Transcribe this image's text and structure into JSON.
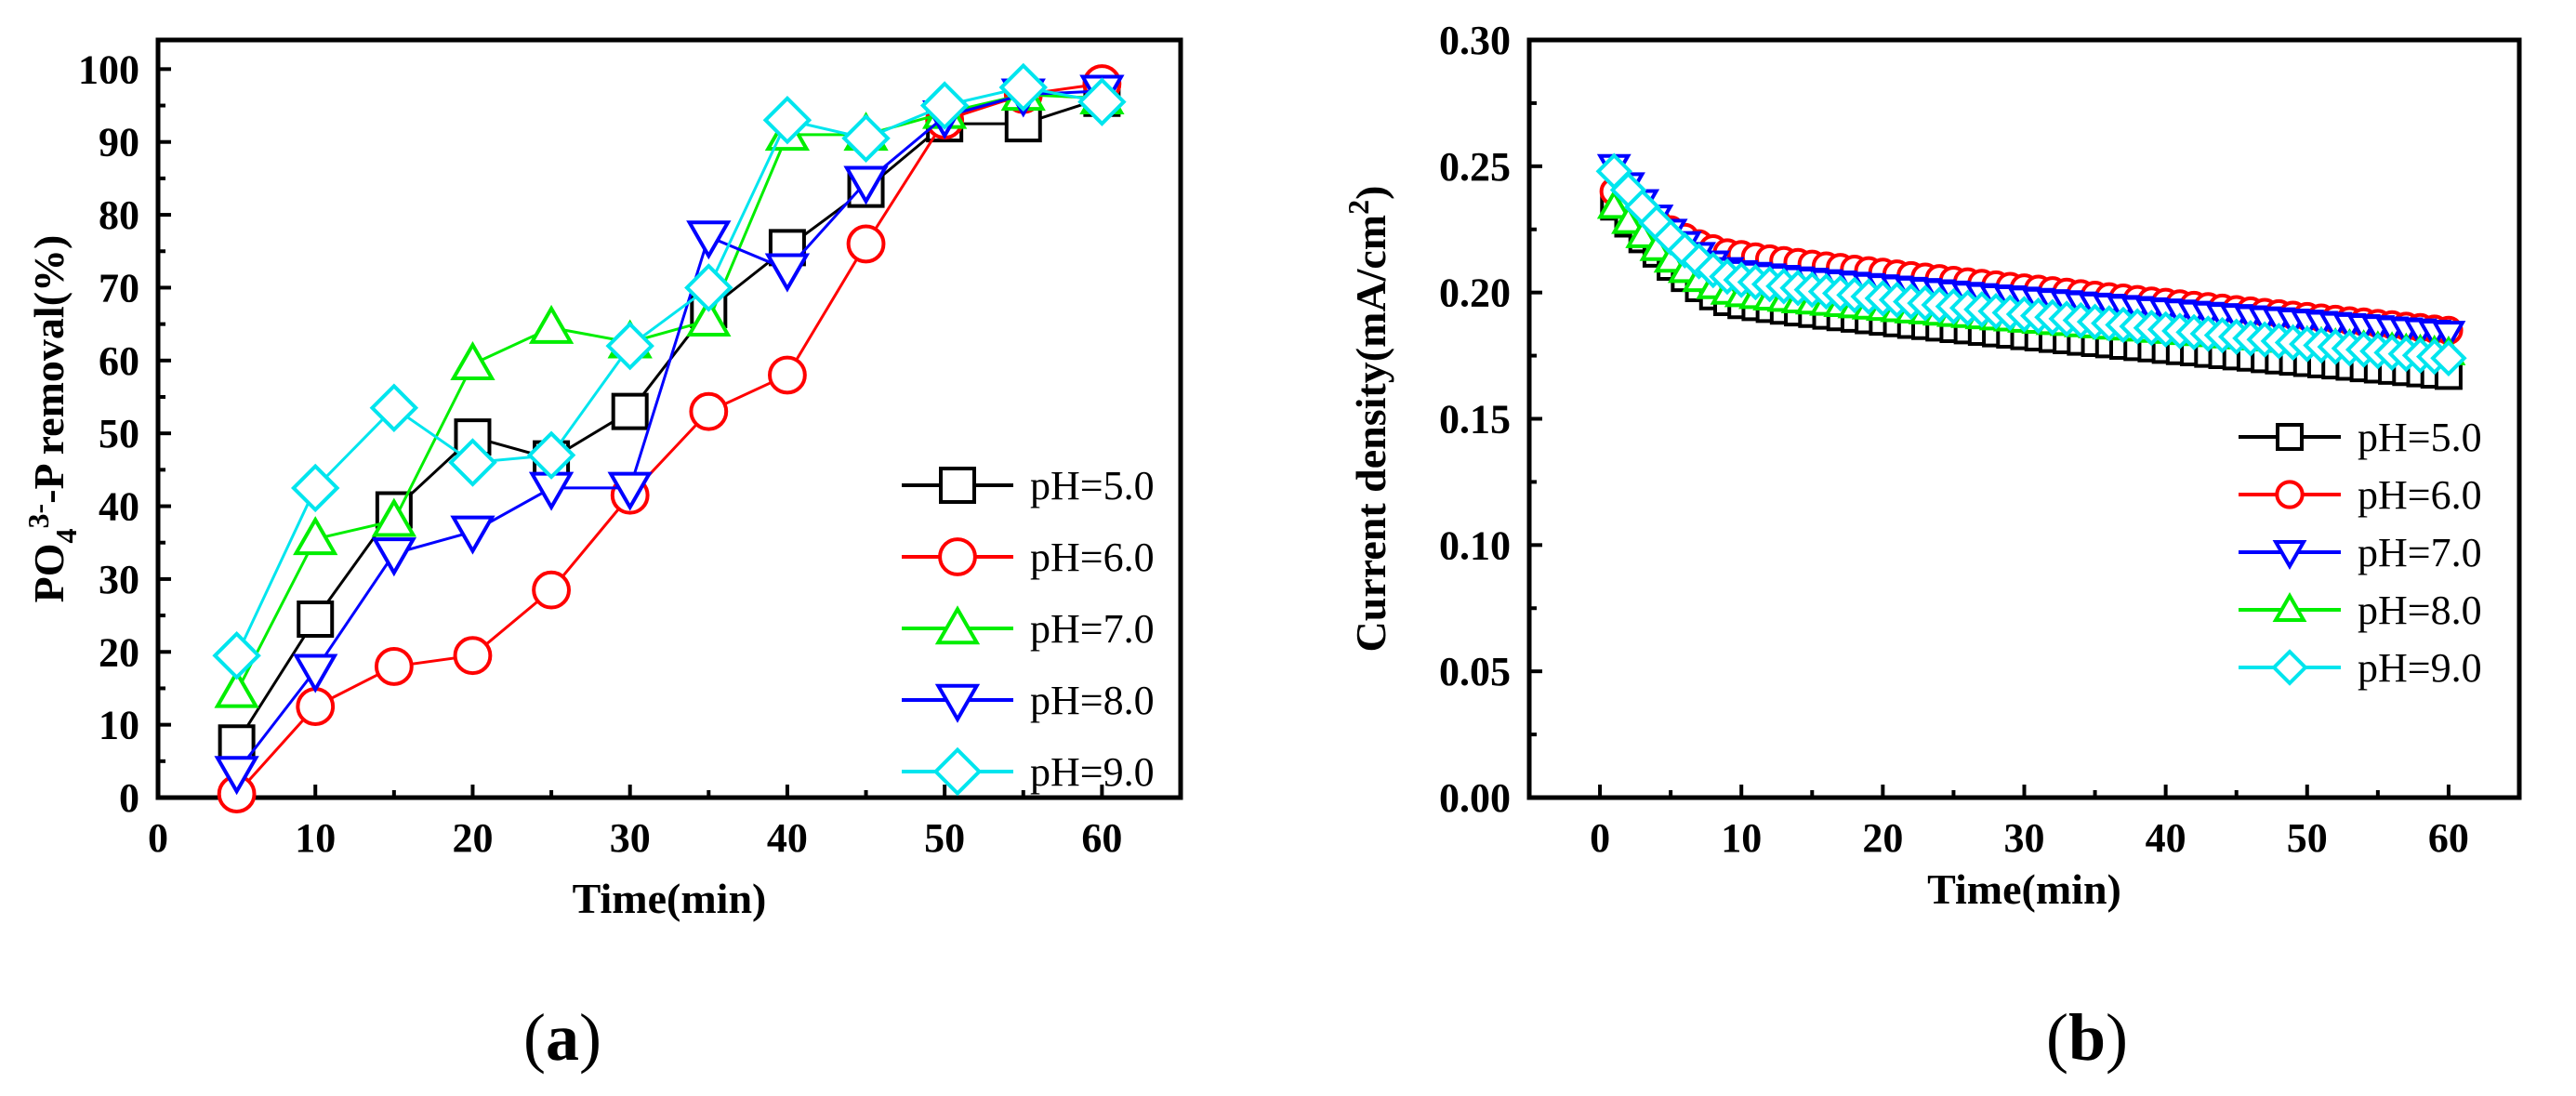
{
  "chart_data": [
    {
      "type": "line",
      "panel_label": "a",
      "xlabel": "Time(min)",
      "ylabel_parts": {
        "pre": "PO",
        "sub": "4",
        "sup": "3-",
        "post": "-P removal(%)"
      },
      "xlim": [
        0,
        65
      ],
      "ylim": [
        0,
        104
      ],
      "xticks": [
        0,
        10,
        20,
        30,
        40,
        50,
        60
      ],
      "yticks": [
        0,
        10,
        20,
        30,
        40,
        50,
        60,
        70,
        80,
        90,
        100
      ],
      "legend_position": "bottom-right",
      "series": [
        {
          "name": "pH=5.0",
          "color": "#000000",
          "marker": "square",
          "x": [
            5,
            10,
            15,
            20,
            25,
            30,
            35,
            40,
            45,
            50,
            55,
            60
          ],
          "y": [
            7.5,
            24.5,
            39.5,
            49.5,
            46.5,
            53,
            67,
            75.5,
            83.5,
            92.5,
            92.5,
            96
          ]
        },
        {
          "name": "pH=6.0",
          "color": "#ff0000",
          "marker": "circle",
          "x": [
            5,
            10,
            15,
            20,
            25,
            30,
            35,
            40,
            45,
            50,
            55,
            60
          ],
          "y": [
            0.5,
            12.5,
            18,
            19.5,
            28.5,
            41.5,
            53,
            58,
            76,
            93,
            96.5,
            98
          ]
        },
        {
          "name": "pH=7.0",
          "color": "#00ee00",
          "marker": "triangle-up",
          "x": [
            5,
            10,
            15,
            20,
            25,
            30,
            35,
            40,
            45,
            50,
            55,
            60
          ],
          "y": [
            14.5,
            35.5,
            38,
            59.5,
            64.5,
            62.5,
            65.5,
            91,
            91,
            94,
            96.5,
            96
          ]
        },
        {
          "name": "pH=8.0",
          "color": "#0000ff",
          "marker": "triangle-down",
          "x": [
            5,
            10,
            15,
            20,
            25,
            30,
            35,
            40,
            45,
            50,
            55,
            60
          ],
          "y": [
            3.5,
            17.5,
            33.5,
            36.5,
            42.5,
            42.5,
            77,
            72.5,
            84.5,
            93.5,
            96.5,
            97
          ]
        },
        {
          "name": "pH=9.0",
          "color": "#00e5ee",
          "marker": "diamond",
          "x": [
            5,
            10,
            15,
            20,
            25,
            30,
            35,
            40,
            45,
            50,
            55,
            60
          ],
          "y": [
            19.5,
            42.5,
            53.5,
            46,
            47,
            62,
            70,
            93,
            90.5,
            95,
            97.5,
            95.5
          ]
        }
      ]
    },
    {
      "type": "line",
      "panel_label": "b",
      "xlabel": "Time(min)",
      "ylabel_parts": {
        "pre": "Current density(mA/cm",
        "sup": "2",
        "post": ")"
      },
      "xlim": [
        -5,
        65
      ],
      "ylim": [
        0,
        0.3
      ],
      "xticks": [
        0,
        10,
        20,
        30,
        40,
        50,
        60
      ],
      "yticks": [
        0.0,
        0.05,
        0.1,
        0.15,
        0.2,
        0.25,
        0.3
      ],
      "ytick_labels": [
        "0.00",
        "0.05",
        "0.10",
        "0.15",
        "0.20",
        "0.25",
        "0.30"
      ],
      "legend_position": "bottom-right",
      "series": [
        {
          "name": "pH=5.0",
          "color": "#000000",
          "marker": "square",
          "x_start": 1,
          "x_end": 60,
          "x_step": 1,
          "y_start": 0.234,
          "y_end": 0.167,
          "y_knee": 0.195,
          "knee_x": 10
        },
        {
          "name": "pH=6.0",
          "color": "#ff0000",
          "marker": "circle",
          "x_start": 1,
          "x_end": 60,
          "x_step": 1,
          "y_start": 0.24,
          "y_end": 0.185,
          "y_knee": 0.215,
          "knee_x": 10
        },
        {
          "name": "pH=7.0",
          "color": "#0000ff",
          "marker": "triangle-down",
          "x_start": 1,
          "x_end": 60,
          "x_step": 1,
          "y_start": 0.25,
          "y_end": 0.184,
          "y_knee": 0.208,
          "knee_x": 10
        },
        {
          "name": "pH=8.0",
          "color": "#00ee00",
          "marker": "triangle-up",
          "x_start": 1,
          "x_end": 60,
          "x_step": 1,
          "y_start": 0.234,
          "y_end": 0.176,
          "y_knee": 0.199,
          "knee_x": 10
        },
        {
          "name": "pH=9.0",
          "color": "#00e5ee",
          "marker": "diamond",
          "x_start": 1,
          "x_end": 60,
          "x_step": 1,
          "y_start": 0.248,
          "y_end": 0.174,
          "y_knee": 0.205,
          "knee_x": 10
        }
      ]
    }
  ]
}
